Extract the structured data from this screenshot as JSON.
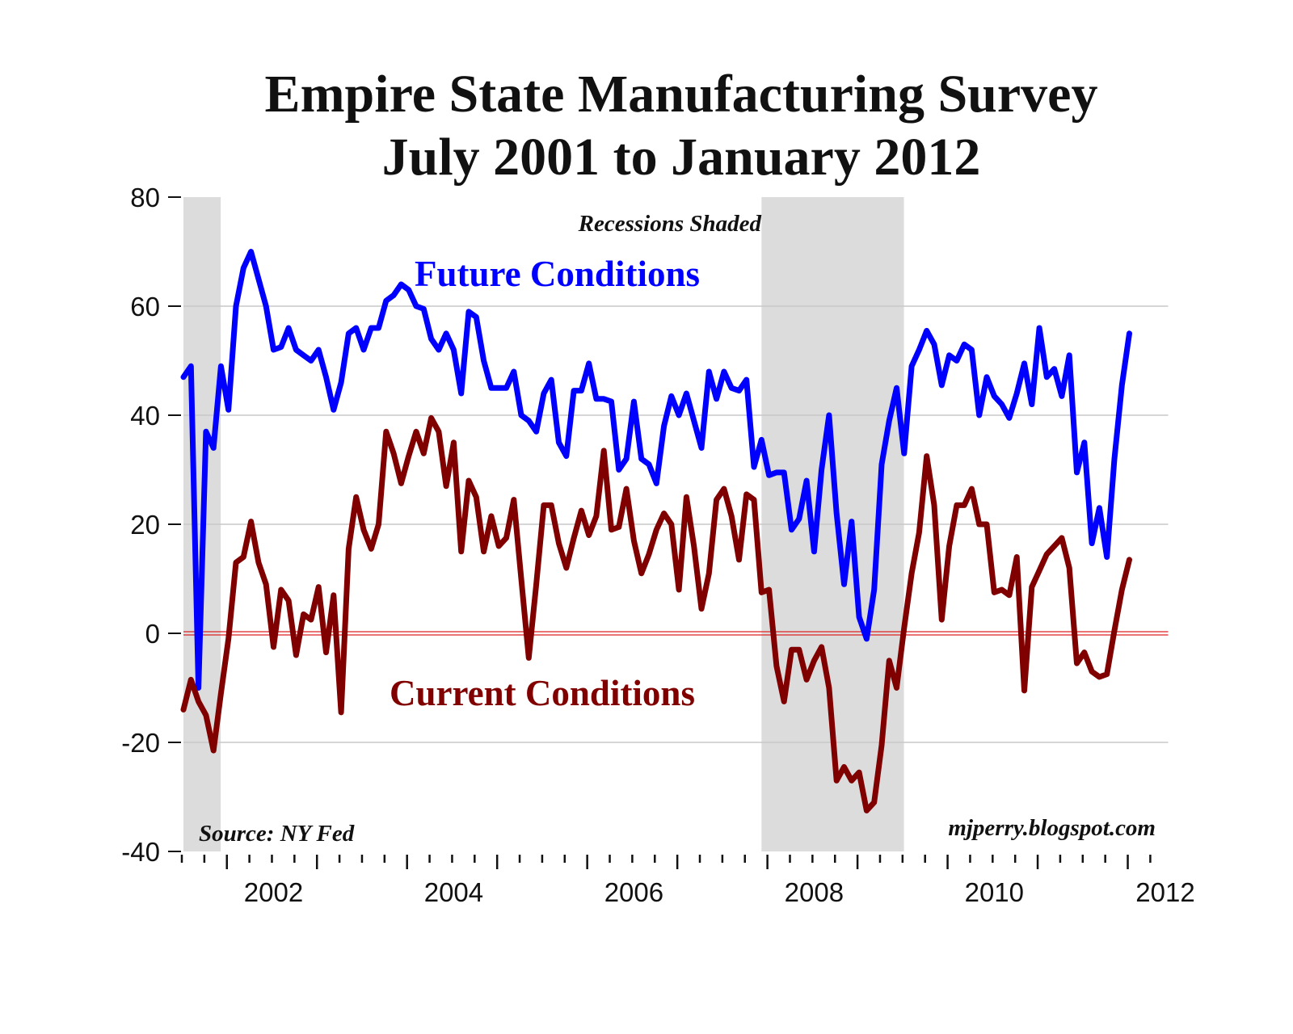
{
  "chart_data": {
    "type": "line",
    "title": "Empire State Manufacturing Survey",
    "subtitle": "July 2001 to January 2012",
    "x_start": "2001-07",
    "x_end": "2012-01",
    "x_frequency": "monthly",
    "x_tick_labels": [
      "2002",
      "2004",
      "2006",
      "2008",
      "2010",
      "2012"
    ],
    "ylim": [
      -40,
      80
    ],
    "y_ticks": [
      80,
      60,
      40,
      20,
      0,
      -20,
      -40
    ],
    "grid": true,
    "recessions": [
      {
        "start": "2001-03",
        "end": "2001-11"
      },
      {
        "start": "2007-12",
        "end": "2009-06"
      }
    ],
    "annotations": {
      "recessions_note": "Recessions Shaded",
      "source": "Source: NY Fed",
      "credit": "mjperry.blogspot.com"
    },
    "series": [
      {
        "name": "Future Conditions",
        "color": "#0000ff",
        "values": [
          47,
          49,
          -10,
          37,
          34,
          49,
          41,
          60,
          67,
          70,
          65,
          60,
          52,
          52.5,
          56,
          52,
          51,
          50,
          52,
          47,
          41,
          46,
          55,
          56,
          52,
          56,
          56,
          61,
          62,
          64,
          63,
          60,
          59.5,
          54,
          52,
          55,
          52,
          44,
          59,
          58,
          50,
          45,
          45,
          45,
          48,
          40,
          39,
          37,
          44,
          46.5,
          35,
          32.5,
          44.5,
          44.5,
          49.5,
          43,
          43,
          42.5,
          30,
          32,
          42.5,
          32,
          31,
          27.5,
          38,
          43.5,
          40,
          44,
          39,
          34,
          48,
          43,
          48,
          45,
          44.5,
          46.5,
          30.5,
          35.5,
          29,
          29.5,
          29.5,
          19,
          21,
          28,
          15,
          30,
          40,
          22,
          9,
          20.5,
          3,
          -1,
          8,
          31,
          39,
          45,
          33,
          49,
          52,
          55.5,
          53,
          45.5,
          51,
          50,
          53,
          52,
          40,
          47,
          43.5,
          42,
          39.5,
          44,
          49.5,
          42,
          56,
          47,
          48.5,
          43.5,
          51,
          29.5,
          35,
          16.5,
          23,
          14,
          32,
          45.5,
          55
        ]
      },
      {
        "name": "Current Conditions",
        "color": "#800000",
        "values": [
          -14,
          -8.5,
          -12.5,
          -15,
          -21.5,
          -11,
          -1,
          13,
          14,
          20.5,
          13,
          9,
          -2.5,
          8,
          6,
          -4,
          3.5,
          2.5,
          8.5,
          -3.5,
          7,
          -14.5,
          15.5,
          25,
          19,
          15.5,
          20,
          37,
          33,
          27.5,
          32.5,
          37,
          33,
          39.5,
          37,
          27,
          35,
          15,
          28,
          25,
          15,
          21.5,
          16,
          17.5,
          24.5,
          10,
          -4.5,
          9,
          23.5,
          23.5,
          16.5,
          12,
          17.5,
          22.5,
          18,
          21.5,
          33.5,
          19,
          19.5,
          26.5,
          17,
          11,
          14.5,
          19,
          22,
          20,
          8,
          25,
          16,
          4.5,
          11,
          24.5,
          26.5,
          21.5,
          13.5,
          25.5,
          24.5,
          7.5,
          8,
          -6,
          -12.5,
          -3,
          -3,
          -8.5,
          -5,
          -2.5,
          -10,
          -27,
          -24.5,
          -27,
          -25.5,
          -32.5,
          -31,
          -20.5,
          -5,
          -10,
          1,
          11,
          18.5,
          32.5,
          23.5,
          2.5,
          16,
          23.5,
          23.5,
          26.5,
          20,
          20,
          7.5,
          8,
          7,
          14,
          -10.5,
          8.5,
          11.5,
          14.5,
          16,
          17.5,
          12,
          -5.5,
          -3.5,
          -7,
          -8,
          -7.5,
          0.5,
          8,
          13.5
        ]
      }
    ]
  }
}
